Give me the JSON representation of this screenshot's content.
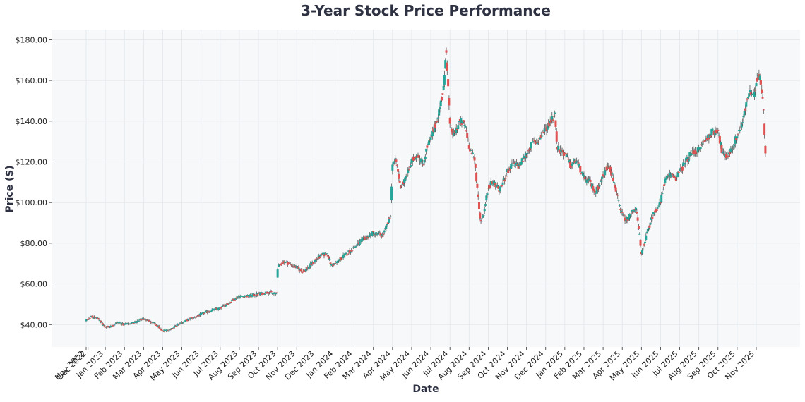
{
  "chart_data": {
    "type": "candlestick",
    "title": "3-Year Stock Price Performance",
    "xlabel": "Date",
    "ylabel": "Price ($)",
    "ylim": [
      29,
      185
    ],
    "grid": true,
    "y_ticks": [
      40,
      60,
      80,
      100,
      120,
      140,
      160,
      180
    ],
    "y_tick_labels": [
      "$40.00",
      "$60.00",
      "$80.00",
      "$100.00",
      "$120.00",
      "$140.00",
      "$160.00",
      "$180.00"
    ],
    "x_tick_labels": [
      "Nov 2022",
      "Dec 2022",
      "Jan 2023",
      "Feb 2023",
      "Mar 2023",
      "Apr 2023",
      "May 2023",
      "Jun 2023",
      "Jul 2023",
      "Aug 2023",
      "Sep 2023",
      "Oct 2023",
      "Nov 2023",
      "Dec 2023",
      "Jan 2024",
      "Feb 2024",
      "Mar 2024",
      "Apr 2024",
      "May 2024",
      "Jun 2024",
      "Jul 2024",
      "Aug 2024",
      "Sep 2024",
      "Oct 2024",
      "Nov 2024",
      "Dec 2024",
      "Jan 2025",
      "Feb 2025",
      "Mar 2025",
      "Apr 2025",
      "May 2025",
      "Jun 2025",
      "Jul 2025",
      "Aug 2025",
      "Sep 2025",
      "Oct 2025",
      "Nov 2025"
    ],
    "x_tick_month_index": [
      0,
      0.1,
      1,
      2,
      3,
      4,
      5,
      6,
      7,
      8,
      9,
      10,
      11,
      12,
      13,
      14,
      15,
      16,
      17,
      18,
      19,
      20,
      21,
      22,
      23,
      24,
      25,
      26,
      27,
      28,
      29,
      30,
      31,
      32,
      33,
      34,
      35
    ],
    "end_month_index": 35.5,
    "up_color": "#26a69a",
    "down_color": "#e05252",
    "wick_color": "#555555",
    "price_path": [
      [
        0,
        42
      ],
      [
        0.3,
        44
      ],
      [
        0.6,
        43
      ],
      [
        1.0,
        39
      ],
      [
        1.3,
        39
      ],
      [
        1.6,
        41
      ],
      [
        2.0,
        40
      ],
      [
        2.5,
        41
      ],
      [
        3.0,
        43
      ],
      [
        3.5,
        41
      ],
      [
        4.0,
        37
      ],
      [
        4.3,
        37
      ],
      [
        4.6,
        39
      ],
      [
        5.0,
        41
      ],
      [
        5.5,
        43
      ],
      [
        6.0,
        45
      ],
      [
        6.5,
        47
      ],
      [
        7.0,
        48
      ],
      [
        7.5,
        51
      ],
      [
        8.0,
        54
      ],
      [
        8.5,
        54
      ],
      [
        9.0,
        55
      ],
      [
        9.5,
        56
      ],
      [
        9.95,
        55
      ],
      [
        10.0,
        68
      ],
      [
        10.3,
        71
      ],
      [
        10.6,
        70
      ],
      [
        11.0,
        68
      ],
      [
        11.3,
        66
      ],
      [
        11.6,
        68
      ],
      [
        12.0,
        72
      ],
      [
        12.3,
        74
      ],
      [
        12.6,
        75
      ],
      [
        12.8,
        69
      ],
      [
        13.0,
        70
      ],
      [
        13.5,
        74
      ],
      [
        14.0,
        78
      ],
      [
        14.5,
        82
      ],
      [
        15.0,
        85
      ],
      [
        15.5,
        84
      ],
      [
        15.9,
        93
      ],
      [
        16.0,
        120
      ],
      [
        16.2,
        120
      ],
      [
        16.4,
        108
      ],
      [
        16.6,
        110
      ],
      [
        17.0,
        120
      ],
      [
        17.3,
        124
      ],
      [
        17.6,
        119
      ],
      [
        17.8,
        127
      ],
      [
        18.0,
        131
      ],
      [
        18.3,
        140
      ],
      [
        18.5,
        148
      ],
      [
        18.7,
        158
      ],
      [
        18.8,
        178
      ],
      [
        19.0,
        137
      ],
      [
        19.2,
        133
      ],
      [
        19.5,
        140
      ],
      [
        19.8,
        138
      ],
      [
        20.0,
        128
      ],
      [
        20.3,
        120
      ],
      [
        20.5,
        100
      ],
      [
        20.6,
        90
      ],
      [
        20.8,
        96
      ],
      [
        21.0,
        108
      ],
      [
        21.3,
        110
      ],
      [
        21.6,
        106
      ],
      [
        22.0,
        115
      ],
      [
        22.3,
        119
      ],
      [
        22.6,
        118
      ],
      [
        23.0,
        124
      ],
      [
        23.3,
        129
      ],
      [
        23.6,
        130
      ],
      [
        24.0,
        136
      ],
      [
        24.3,
        141
      ],
      [
        24.5,
        143
      ],
      [
        24.6,
        127
      ],
      [
        25.0,
        124
      ],
      [
        25.3,
        118
      ],
      [
        25.6,
        121
      ],
      [
        26.0,
        112
      ],
      [
        26.3,
        110
      ],
      [
        26.6,
        105
      ],
      [
        27.0,
        113
      ],
      [
        27.3,
        119
      ],
      [
        27.6,
        109
      ],
      [
        27.9,
        96
      ],
      [
        28.2,
        91
      ],
      [
        28.5,
        95
      ],
      [
        28.7,
        98
      ],
      [
        28.9,
        84
      ],
      [
        29.0,
        74
      ],
      [
        29.2,
        82
      ],
      [
        29.4,
        88
      ],
      [
        29.6,
        94
      ],
      [
        30.0,
        100
      ],
      [
        30.2,
        110
      ],
      [
        30.5,
        114
      ],
      [
        30.8,
        112
      ],
      [
        31.0,
        115
      ],
      [
        31.3,
        120
      ],
      [
        31.6,
        124
      ],
      [
        32.0,
        126
      ],
      [
        32.3,
        130
      ],
      [
        32.6,
        134
      ],
      [
        33.0,
        136
      ],
      [
        33.2,
        125
      ],
      [
        33.4,
        122
      ],
      [
        33.7,
        126
      ],
      [
        34.0,
        133
      ],
      [
        34.3,
        140
      ],
      [
        34.6,
        154
      ],
      [
        34.9,
        152
      ],
      [
        35.0,
        160
      ],
      [
        35.1,
        163
      ],
      [
        35.2,
        162
      ],
      [
        35.35,
        150
      ],
      [
        35.5,
        121
      ]
    ]
  }
}
